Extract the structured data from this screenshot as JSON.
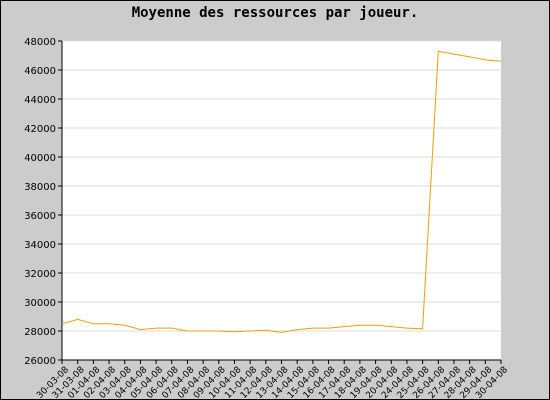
{
  "title": "Moyenne des ressources par joueur.",
  "colors": {
    "background": "#cccccc",
    "plot_background": "#ffffff",
    "line": "#f0a000",
    "grid": "#dddddd",
    "text": "#000000"
  },
  "chart_data": {
    "type": "line",
    "title": "Moyenne des ressources par joueur.",
    "xlabel": "",
    "ylabel": "",
    "ylim": [
      26000,
      48000
    ],
    "yticks": [
      26000,
      28000,
      30000,
      32000,
      34000,
      36000,
      38000,
      40000,
      42000,
      44000,
      46000,
      48000
    ],
    "grid": true,
    "legend": "none",
    "categories": [
      "30-03-08",
      "31-03-08",
      "01-04-08",
      "02-04-08",
      "03-04-08",
      "04-04-08",
      "05-04-08",
      "06-04-08",
      "07-04-08",
      "08-04-08",
      "09-04-08",
      "10-04-08",
      "11-04-08",
      "12-04-08",
      "13-04-08",
      "14-04-08",
      "15-04-08",
      "16-04-08",
      "17-04-08",
      "18-04-08",
      "19-04-08",
      "20-04-08",
      "24-04-08",
      "25-04-08",
      "26-04-08",
      "27-04-08",
      "28-04-08",
      "29-04-08",
      "30-04-08"
    ],
    "series": [
      {
        "values": [
          28500,
          28800,
          28500,
          28500,
          28400,
          28100,
          28200,
          28200,
          28000,
          28000,
          28000,
          27950,
          28000,
          28050,
          27900,
          28100,
          28200,
          28200,
          28300,
          28400,
          28400,
          28300,
          28200,
          28150,
          47300,
          47100,
          46900,
          46700,
          46600
        ]
      }
    ]
  }
}
